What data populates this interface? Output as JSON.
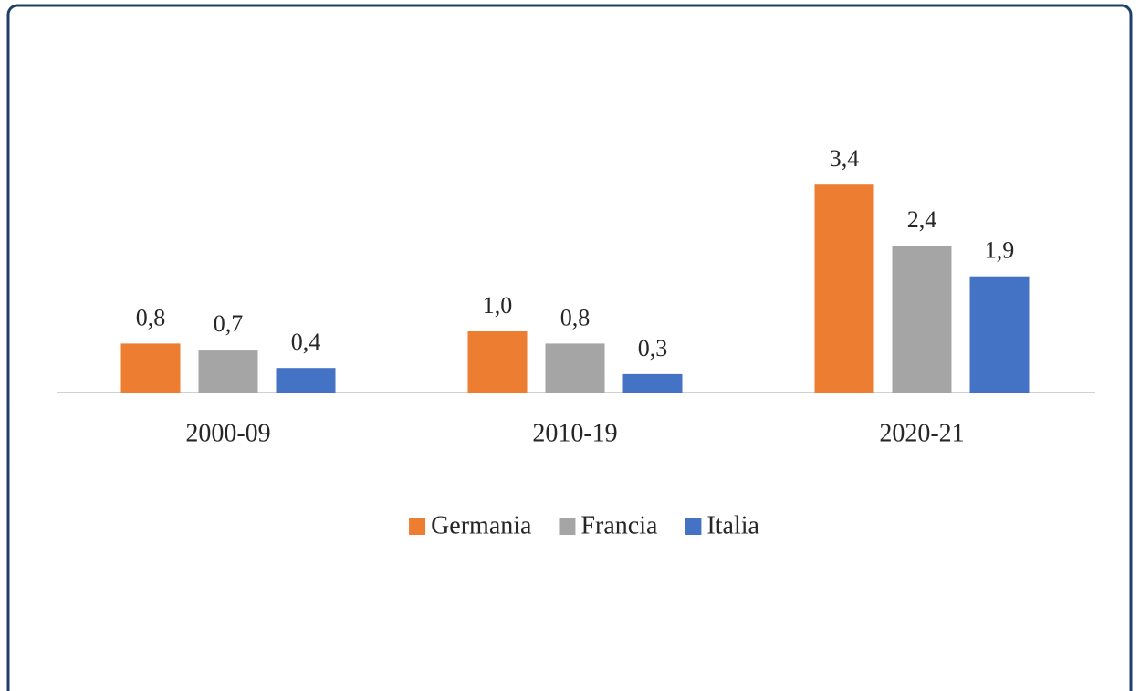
{
  "chart_data": {
    "type": "bar",
    "categories": [
      "2000-09",
      "2010-19",
      "2020-21"
    ],
    "series": [
      {
        "name": "Germania",
        "color": "#ed7d31",
        "values": [
          0.8,
          1.0,
          3.4
        ],
        "value_labels": [
          "0,8",
          "1,0",
          "3,4"
        ]
      },
      {
        "name": "Francia",
        "color": "#a5a5a5",
        "values": [
          0.7,
          0.8,
          2.4
        ],
        "value_labels": [
          "0,7",
          "0,8",
          "2,4"
        ]
      },
      {
        "name": "Italia",
        "color": "#4472c4",
        "values": [
          0.4,
          0.3,
          1.9
        ],
        "value_labels": [
          "0,4",
          "0,3",
          "1,9"
        ]
      }
    ],
    "legend": "bottom"
  }
}
